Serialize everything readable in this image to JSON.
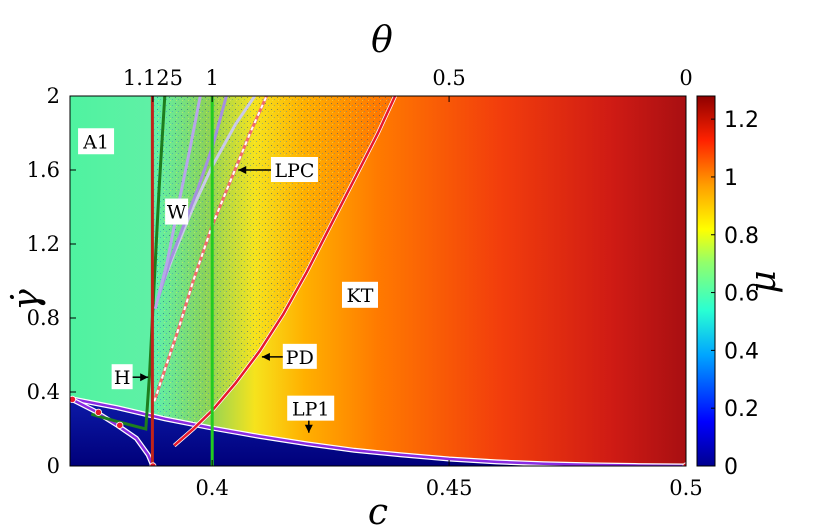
{
  "chart_data": {
    "type": "heatmap",
    "xlabel": "c",
    "ylabel": "γ̇",
    "top_label": "θ",
    "colorbar_label": "μ",
    "xlim": [
      0.37,
      0.5
    ],
    "ylim": [
      0,
      2
    ],
    "x_ticks": [
      {
        "value": 0.4,
        "label": "0.4"
      },
      {
        "value": 0.45,
        "label": "0.45"
      },
      {
        "value": 0.5,
        "label": "0.5"
      }
    ],
    "y_ticks": [
      {
        "value": 0,
        "label": "0"
      },
      {
        "value": 0.4,
        "label": "0.4"
      },
      {
        "value": 0.8,
        "label": "0.8"
      },
      {
        "value": 1.2,
        "label": "1.2"
      },
      {
        "value": 1.6,
        "label": "1.6"
      },
      {
        "value": 2,
        "label": "2"
      }
    ],
    "top_ticks": [
      {
        "c": 0.3875,
        "label": "1.125"
      },
      {
        "c": 0.4,
        "label": "1"
      },
      {
        "c": 0.45,
        "label": "0.5"
      },
      {
        "c": 0.5,
        "label": "0"
      }
    ],
    "colorbar": {
      "range": [
        0,
        1.28
      ],
      "ticks": [
        {
          "value": 0,
          "label": "0"
        },
        {
          "value": 0.2,
          "label": "0.2"
        },
        {
          "value": 0.4,
          "label": "0.4"
        },
        {
          "value": 0.6,
          "label": "0.6"
        },
        {
          "value": 0.8,
          "label": "0.8"
        },
        {
          "value": 1.0,
          "label": "1"
        },
        {
          "value": 1.2,
          "label": "1.2"
        }
      ]
    },
    "regions": [
      {
        "label": "A1",
        "c": 0.3755,
        "gamma": 1.75
      },
      {
        "label": "W",
        "c": 0.3925,
        "gamma": 1.37
      },
      {
        "label": "KT",
        "c": 0.4312,
        "gamma": 0.92
      }
    ],
    "curve_labels": [
      {
        "label": "LPC",
        "text_c": 0.4065,
        "text_gamma": 1.6,
        "arrow_to": [
          0.4055,
          1.6
        ]
      },
      {
        "label": "PD",
        "text_c": 0.409,
        "text_gamma": 0.59,
        "arrow_to": [
          0.4105,
          0.59
        ]
      },
      {
        "label": "H",
        "text_c": 0.381,
        "text_gamma": 0.48,
        "arrow_to": [
          0.3865,
          0.48
        ]
      },
      {
        "label": "LP1",
        "text_c": 0.4208,
        "text_gamma": 0.31,
        "arrow_to": [
          0.4204,
          0.18
        ]
      }
    ],
    "curves": [
      {
        "name": "LP1",
        "color": "#8a2be2",
        "points": [
          [
            0.37,
            0.365
          ],
          [
            0.38,
            0.315
          ],
          [
            0.39,
            0.255
          ],
          [
            0.4,
            0.205
          ],
          [
            0.41,
            0.16
          ],
          [
            0.42,
            0.12
          ],
          [
            0.43,
            0.085
          ],
          [
            0.44,
            0.06
          ],
          [
            0.45,
            0.038
          ],
          [
            0.46,
            0.022
          ],
          [
            0.47,
            0.012
          ],
          [
            0.48,
            0.006
          ],
          [
            0.49,
            0.002
          ],
          [
            0.5,
            0.0
          ]
        ]
      },
      {
        "name": "LP1-branch",
        "color": "#8a2be2",
        "points": [
          [
            0.37,
            0.365
          ],
          [
            0.375,
            0.3
          ],
          [
            0.38,
            0.22
          ],
          [
            0.384,
            0.15
          ],
          [
            0.3865,
            0.06
          ],
          [
            0.3875,
            0.0
          ]
        ]
      },
      {
        "name": "PD",
        "color": "#e8192c",
        "points": [
          [
            0.392,
            0.11
          ],
          [
            0.396,
            0.2
          ],
          [
            0.4,
            0.3
          ],
          [
            0.405,
            0.45
          ],
          [
            0.41,
            0.62
          ],
          [
            0.415,
            0.82
          ],
          [
            0.42,
            1.05
          ],
          [
            0.425,
            1.3
          ],
          [
            0.43,
            1.55
          ],
          [
            0.435,
            1.8
          ],
          [
            0.4386,
            2.0
          ]
        ]
      },
      {
        "name": "H",
        "color": "#1e7d1e",
        "points": [
          [
            0.3745,
            0.28
          ],
          [
            0.38,
            0.24
          ],
          [
            0.386,
            0.2
          ],
          [
            0.3868,
            0.5
          ],
          [
            0.3878,
            1.0
          ],
          [
            0.3888,
            1.5
          ],
          [
            0.39,
            2.0
          ]
        ]
      },
      {
        "name": "LPC",
        "color": "#ffffff",
        "points": [
          [
            0.3878,
            0.35
          ],
          [
            0.39,
            0.52
          ],
          [
            0.393,
            0.75
          ],
          [
            0.396,
            1.0
          ],
          [
            0.4,
            1.3
          ],
          [
            0.404,
            1.55
          ],
          [
            0.408,
            1.8
          ],
          [
            0.4115,
            2.0
          ]
        ]
      },
      {
        "name": "W-upper",
        "color": "#c9c9e8",
        "points": [
          [
            0.389,
            0.95
          ],
          [
            0.392,
            1.15
          ],
          [
            0.396,
            1.4
          ],
          [
            0.4,
            1.62
          ],
          [
            0.405,
            1.85
          ],
          [
            0.409,
            2.0
          ]
        ]
      },
      {
        "name": "W-lower",
        "color": "#a58fe0",
        "points": [
          [
            0.3885,
            0.9
          ],
          [
            0.391,
            1.1
          ],
          [
            0.394,
            1.3
          ],
          [
            0.397,
            1.5
          ],
          [
            0.4,
            1.72
          ],
          [
            0.403,
            2.0
          ]
        ]
      },
      {
        "name": "W-left",
        "color": "#b7a6ea",
        "points": [
          [
            0.388,
            0.85
          ],
          [
            0.3905,
            1.1
          ],
          [
            0.3928,
            1.4
          ],
          [
            0.3952,
            1.7
          ],
          [
            0.3975,
            2.0
          ]
        ]
      },
      {
        "name": "red-vertical",
        "color": "#c0241b",
        "points": [
          [
            0.3874,
            0.0
          ],
          [
            0.3874,
            2.0
          ]
        ]
      },
      {
        "name": "green-vertical",
        "color": "#22cc22",
        "points": [
          [
            0.4,
            0.0
          ],
          [
            0.4,
            2.0
          ]
        ]
      }
    ],
    "markers": [
      {
        "c": 0.3705,
        "gamma": 0.36
      },
      {
        "c": 0.376,
        "gamma": 0.29
      },
      {
        "c": 0.3805,
        "gamma": 0.22
      },
      {
        "c": 0.3875,
        "gamma": 0.0
      },
      {
        "c": 0.5,
        "gamma": 0.0
      }
    ]
  }
}
